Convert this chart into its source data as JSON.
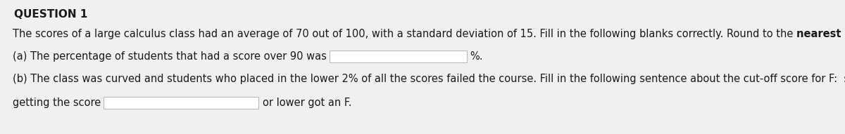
{
  "title": "QUESTION 1",
  "line1_normal": "The scores of a large calculus class had an average of 70 out of 100, with a standard deviation of 15. Fill in the following blanks correctly. Round to the ",
  "line1_bold": "nearest integer",
  "line1_end": ".",
  "line2_prefix": "(a) The percentage of students that had a score over 90 was",
  "line2_suffix": "%.",
  "line3": "(b) The class was curved and students who placed in the lower 2% of all the scores failed the course. Fill in the following sentence about the cut-off score for F:  students",
  "line4_prefix": "getting the score",
  "line4_suffix": "or lower got an F.",
  "bg_color": "#f0f0f0",
  "text_color": "#1a1a1a",
  "box_color": "#ffffff",
  "box_border": "#bbbbbb",
  "font_size": 10.5,
  "title_font_size": 11.0
}
